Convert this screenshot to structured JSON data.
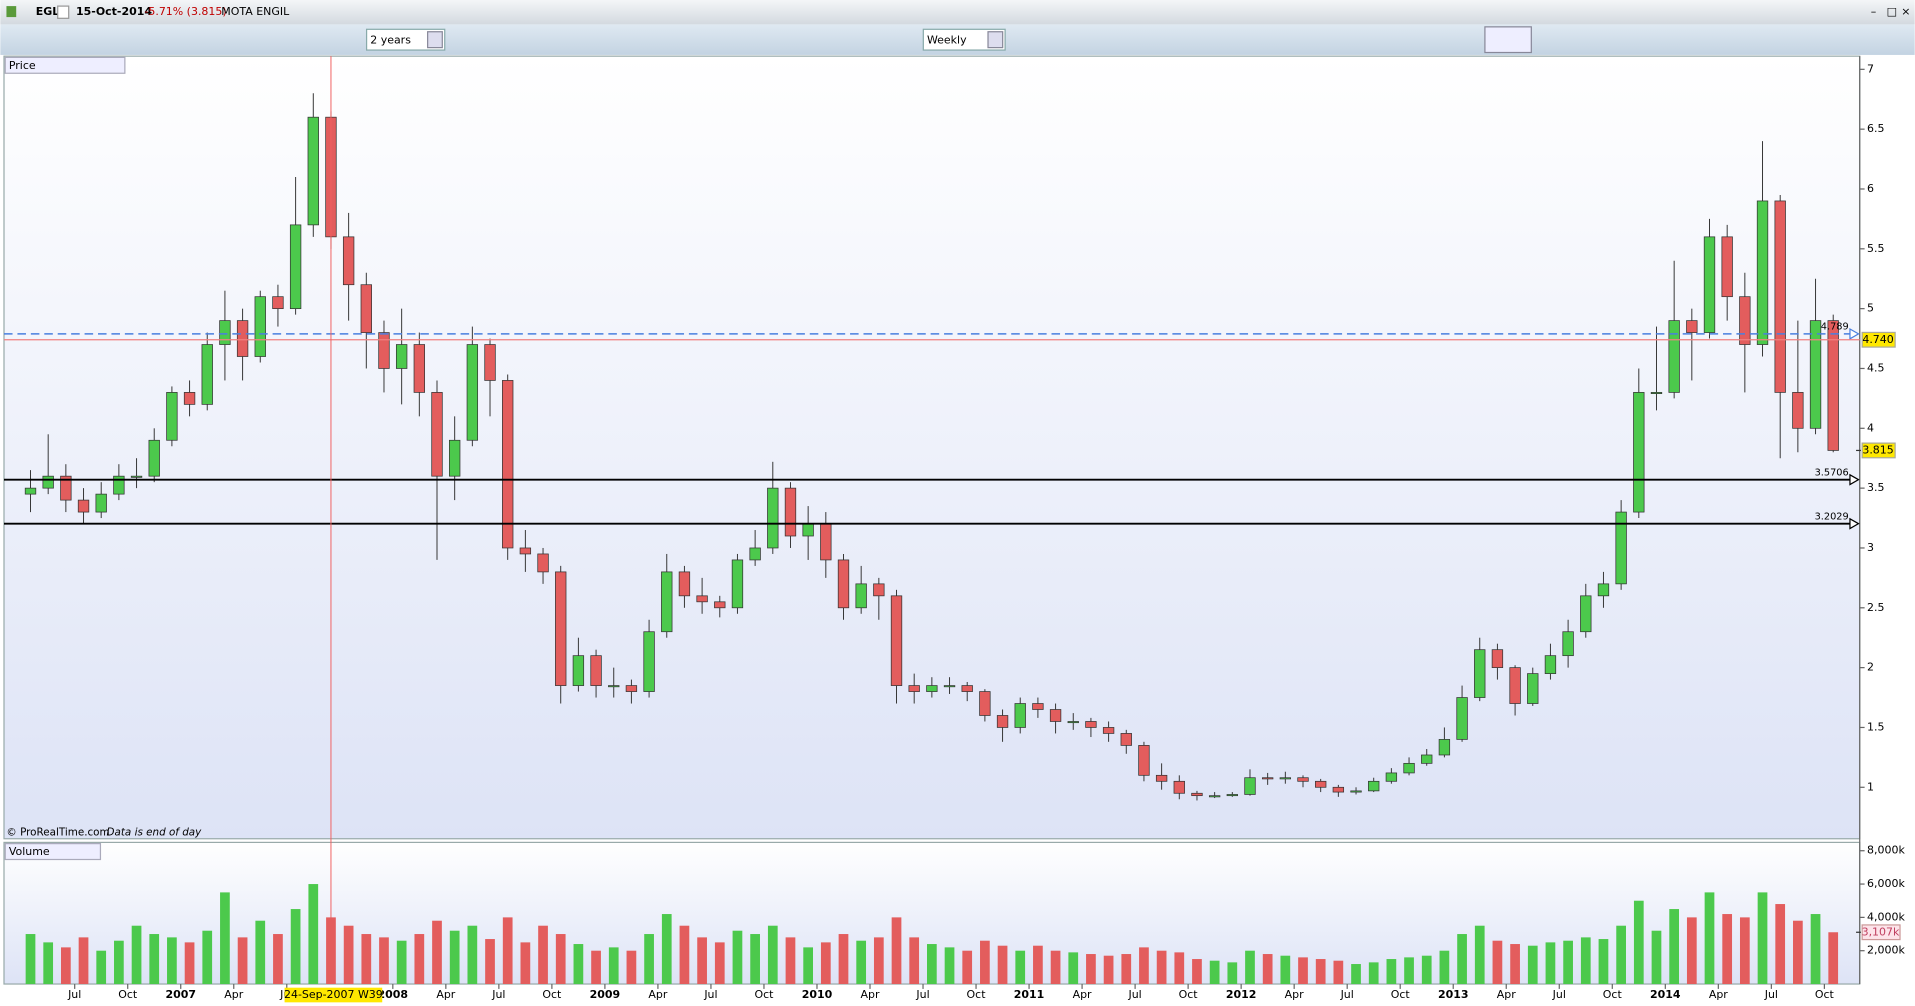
{
  "header": {
    "symbol": "EGL",
    "date": "15-Oct-2014",
    "change": "-5.71% (3.815)",
    "name": "MOTA ENGIL"
  },
  "toolbar": {
    "period": "2 years",
    "interval": "Weekly"
  },
  "footer_note": {
    "source": "© ProRealTime.com",
    "note": "Data is end of day"
  },
  "chart_data": [
    {
      "type": "candlestick",
      "title": "Price",
      "x": [
        "2006-04",
        "2006-05",
        "2006-06",
        "2006-07",
        "2006-08",
        "2006-09",
        "2006-10",
        "2006-11",
        "2006-12",
        "2007-01",
        "2007-02",
        "2007-03",
        "2007-04",
        "2007-05",
        "2007-06",
        "2007-07",
        "2007-08",
        "2007-09",
        "2007-10",
        "2007-11",
        "2007-12",
        "2008-01",
        "2008-02",
        "2008-03",
        "2008-04",
        "2008-05",
        "2008-06",
        "2008-07",
        "2008-08",
        "2008-09",
        "2008-10",
        "2008-11",
        "2008-12",
        "2009-01",
        "2009-02",
        "2009-03",
        "2009-04",
        "2009-05",
        "2009-06",
        "2009-07",
        "2009-08",
        "2009-09",
        "2009-10",
        "2009-11",
        "2009-12",
        "2010-01",
        "2010-02",
        "2010-03",
        "2010-04",
        "2010-05",
        "2010-06",
        "2010-07",
        "2010-08",
        "2010-09",
        "2010-10",
        "2010-11",
        "2010-12",
        "2011-01",
        "2011-02",
        "2011-03",
        "2011-04",
        "2011-05",
        "2011-06",
        "2011-07",
        "2011-08",
        "2011-09",
        "2011-10",
        "2011-11",
        "2011-12",
        "2012-01",
        "2012-02",
        "2012-03",
        "2012-04",
        "2012-05",
        "2012-06",
        "2012-07",
        "2012-08",
        "2012-09",
        "2012-10",
        "2012-11",
        "2012-12",
        "2013-01",
        "2013-02",
        "2013-03",
        "2013-04",
        "2013-05",
        "2013-06",
        "2013-07",
        "2013-08",
        "2013-09",
        "2013-10",
        "2013-11",
        "2013-12",
        "2014-01",
        "2014-02",
        "2014-03",
        "2014-04",
        "2014-05",
        "2014-06",
        "2014-07",
        "2014-08",
        "2014-09",
        "2014-10"
      ],
      "open": [
        3.45,
        3.5,
        3.6,
        3.4,
        3.3,
        3.45,
        3.6,
        3.6,
        3.9,
        4.3,
        4.2,
        4.7,
        4.9,
        4.6,
        5.1,
        5.0,
        5.7,
        6.6,
        5.6,
        5.2,
        4.8,
        4.5,
        4.7,
        4.3,
        3.6,
        3.9,
        4.7,
        4.4,
        3.0,
        2.95,
        2.8,
        1.85,
        2.1,
        1.85,
        1.85,
        1.8,
        2.3,
        2.8,
        2.6,
        2.55,
        2.5,
        2.9,
        3.0,
        3.5,
        3.1,
        3.2,
        2.9,
        2.5,
        2.7,
        2.6,
        1.85,
        1.8,
        1.85,
        1.85,
        1.8,
        1.6,
        1.5,
        1.7,
        1.65,
        1.55,
        1.55,
        1.5,
        1.45,
        1.35,
        1.1,
        1.05,
        0.95,
        0.93,
        0.93,
        0.94,
        1.08,
        1.07,
        1.08,
        1.05,
        1.0,
        0.96,
        0.97,
        1.05,
        1.12,
        1.2,
        1.27,
        1.4,
        1.75,
        2.15,
        2.0,
        1.7,
        1.95,
        2.1,
        2.3,
        2.6,
        2.7,
        3.3,
        4.3,
        4.3,
        4.9,
        4.8,
        5.6,
        5.1,
        4.7,
        5.9,
        4.3,
        4.0,
        4.9
      ],
      "high": [
        3.65,
        3.95,
        3.7,
        3.5,
        3.55,
        3.7,
        3.75,
        4.0,
        4.35,
        4.4,
        4.8,
        5.15,
        5.0,
        5.15,
        5.2,
        6.1,
        6.8,
        6.65,
        5.8,
        5.3,
        4.9,
        5.0,
        4.8,
        4.4,
        4.1,
        4.85,
        4.75,
        4.45,
        3.15,
        3.0,
        2.85,
        2.25,
        2.15,
        2.0,
        1.9,
        2.4,
        2.95,
        2.85,
        2.75,
        2.6,
        2.95,
        3.15,
        3.72,
        3.55,
        3.35,
        3.3,
        2.95,
        2.85,
        2.75,
        2.65,
        1.95,
        1.92,
        1.92,
        1.88,
        1.82,
        1.65,
        1.75,
        1.75,
        1.7,
        1.62,
        1.58,
        1.55,
        1.48,
        1.38,
        1.2,
        1.1,
        0.97,
        0.96,
        0.96,
        1.15,
        1.12,
        1.13,
        1.1,
        1.07,
        1.02,
        1.0,
        1.08,
        1.16,
        1.25,
        1.32,
        1.5,
        1.85,
        2.25,
        2.2,
        2.02,
        2.0,
        2.2,
        2.4,
        2.7,
        2.8,
        3.4,
        4.5,
        4.85,
        5.4,
        5.0,
        5.75,
        5.7,
        5.3,
        6.4,
        5.95,
        4.9,
        5.25,
        4.95
      ],
      "low": [
        3.3,
        3.45,
        3.3,
        3.2,
        3.25,
        3.4,
        3.5,
        3.55,
        3.85,
        4.1,
        4.15,
        4.4,
        4.4,
        4.55,
        4.85,
        4.95,
        5.6,
        5.5,
        4.9,
        4.5,
        4.3,
        4.2,
        4.1,
        2.9,
        3.4,
        3.85,
        4.1,
        2.9,
        2.8,
        2.7,
        1.7,
        1.8,
        1.75,
        1.75,
        1.7,
        1.75,
        2.25,
        2.5,
        2.45,
        2.42,
        2.45,
        2.85,
        2.95,
        3.0,
        2.9,
        2.75,
        2.4,
        2.45,
        2.4,
        1.7,
        1.7,
        1.75,
        1.78,
        1.72,
        1.55,
        1.38,
        1.45,
        1.58,
        1.45,
        1.48,
        1.42,
        1.38,
        1.28,
        1.05,
        0.98,
        0.9,
        0.89,
        0.91,
        0.92,
        0.93,
        1.02,
        1.03,
        1.0,
        0.96,
        0.92,
        0.94,
        0.96,
        1.03,
        1.1,
        1.18,
        1.25,
        1.38,
        1.72,
        1.9,
        1.6,
        1.68,
        1.9,
        2.0,
        2.25,
        2.5,
        2.65,
        3.25,
        4.15,
        4.25,
        4.4,
        4.75,
        4.9,
        4.3,
        4.6,
        3.75,
        3.8,
        3.95,
        3.8
      ],
      "close": [
        3.5,
        3.6,
        3.4,
        3.3,
        3.45,
        3.6,
        3.6,
        3.9,
        4.3,
        4.2,
        4.7,
        4.9,
        4.6,
        5.1,
        5.0,
        5.7,
        6.6,
        5.6,
        5.2,
        4.8,
        4.5,
        4.7,
        4.3,
        3.6,
        3.9,
        4.7,
        4.4,
        3.0,
        2.95,
        2.8,
        1.85,
        2.1,
        1.85,
        1.85,
        1.8,
        2.3,
        2.8,
        2.6,
        2.55,
        2.5,
        2.9,
        3.0,
        3.5,
        3.1,
        3.2,
        2.9,
        2.5,
        2.7,
        2.6,
        1.85,
        1.8,
        1.85,
        1.85,
        1.8,
        1.6,
        1.5,
        1.7,
        1.65,
        1.55,
        1.55,
        1.5,
        1.45,
        1.35,
        1.1,
        1.05,
        0.95,
        0.93,
        0.93,
        0.94,
        1.08,
        1.07,
        1.08,
        1.05,
        1.0,
        0.96,
        0.97,
        1.05,
        1.12,
        1.2,
        1.27,
        1.4,
        1.75,
        2.15,
        2.0,
        1.7,
        1.95,
        2.1,
        2.3,
        2.6,
        2.7,
        3.3,
        4.3,
        4.3,
        4.9,
        4.8,
        5.6,
        5.1,
        4.7,
        5.9,
        4.3,
        4.0,
        4.9,
        3.815
      ],
      "up_color": "#4cc94c",
      "down_color": "#e35d5d",
      "xlim": [
        "2006-03",
        "2014-12"
      ],
      "xticks": [
        {
          "value": "2006-07",
          "label": "Jul"
        },
        {
          "value": "2006-10",
          "label": "Oct"
        },
        {
          "value": "2007-01",
          "label": "2007"
        },
        {
          "value": "2007-04",
          "label": "Apr"
        },
        {
          "value": "2007-07",
          "label": "Jul"
        },
        {
          "value": "2008-01",
          "label": "2008"
        },
        {
          "value": "2008-04",
          "label": "Apr"
        },
        {
          "value": "2008-07",
          "label": "Jul"
        },
        {
          "value": "2008-10",
          "label": "Oct"
        },
        {
          "value": "2009-01",
          "label": "2009"
        },
        {
          "value": "2009-04",
          "label": "Apr"
        },
        {
          "value": "2009-07",
          "label": "Jul"
        },
        {
          "value": "2009-10",
          "label": "Oct"
        },
        {
          "value": "2010-01",
          "label": "2010"
        },
        {
          "value": "2010-04",
          "label": "Apr"
        },
        {
          "value": "2010-07",
          "label": "Jul"
        },
        {
          "value": "2010-10",
          "label": "Oct"
        },
        {
          "value": "2011-01",
          "label": "2011"
        },
        {
          "value": "2011-04",
          "label": "Apr"
        },
        {
          "value": "2011-07",
          "label": "Jul"
        },
        {
          "value": "2011-10",
          "label": "Oct"
        },
        {
          "value": "2012-01",
          "label": "2012"
        },
        {
          "value": "2012-04",
          "label": "Apr"
        },
        {
          "value": "2012-07",
          "label": "Jul"
        },
        {
          "value": "2012-10",
          "label": "Oct"
        },
        {
          "value": "2013-01",
          "label": "2013"
        },
        {
          "value": "2013-04",
          "label": "Apr"
        },
        {
          "value": "2013-07",
          "label": "Jul"
        },
        {
          "value": "2013-10",
          "label": "Oct"
        },
        {
          "value": "2014-01",
          "label": "2014"
        },
        {
          "value": "2014-04",
          "label": "Apr"
        },
        {
          "value": "2014-07",
          "label": "Jul"
        },
        {
          "value": "2014-10",
          "label": "Oct"
        }
      ],
      "ylim": [
        0.57,
        7.11
      ],
      "yticks": [
        1,
        1.5,
        2,
        2.5,
        3,
        3.5,
        4,
        4.5,
        5,
        5.5,
        6,
        6.5,
        7
      ],
      "hlines": [
        {
          "value": 4.789,
          "color": "#4a7fe0",
          "dashed": true
        },
        {
          "value": 3.5706,
          "color": "#000000",
          "dashed": false
        },
        {
          "value": 3.2029,
          "color": "#000000",
          "dashed": false
        }
      ],
      "markers": [
        {
          "value": 4.74,
          "label": "4.740",
          "line_color": "#f08080"
        },
        {
          "value": 3.815,
          "label": "3.815"
        }
      ],
      "cursor": {
        "x": "2007-09",
        "label": "24-Sep-2007 W39"
      }
    },
    {
      "type": "volume",
      "title": "Volume",
      "values": [
        3000,
        2500,
        2200,
        2800,
        2000,
        2600,
        3500,
        3000,
        2800,
        2500,
        3200,
        5500,
        2800,
        3800,
        3000,
        4500,
        6000,
        4000,
        3500,
        3000,
        2800,
        2600,
        3000,
        3800,
        3200,
        3500,
        2700,
        4000,
        2500,
        3500,
        3000,
        2400,
        2000,
        2200,
        2000,
        3000,
        4200,
        3500,
        2800,
        2500,
        3200,
        3000,
        3500,
        2800,
        2200,
        2500,
        3000,
        2600,
        2800,
        4000,
        2800,
        2400,
        2200,
        2000,
        2600,
        2300,
        2000,
        2300,
        2000,
        1900,
        1800,
        1700,
        1800,
        2200,
        2000,
        1900,
        1500,
        1400,
        1300,
        2000,
        1800,
        1700,
        1600,
        1500,
        1400,
        1200,
        1300,
        1500,
        1600,
        1700,
        2000,
        3000,
        3500,
        2600,
        2400,
        2300,
        2500,
        2600,
        2800,
        2700,
        3500,
        5000,
        3200,
        4500,
        4000,
        5500,
        4200,
        4000,
        5500,
        4800,
        3800,
        4200,
        3107
      ],
      "ylim": [
        0,
        8500
      ],
      "yticks": [
        {
          "value": 2000,
          "label": "2,000k"
        },
        {
          "value": 4000,
          "label": "4,000k"
        },
        {
          "value": 6000,
          "label": "6,000k"
        },
        {
          "value": 8000,
          "label": "8,000k"
        }
      ],
      "marker": {
        "value": 3107,
        "label": "3,107k"
      }
    }
  ]
}
